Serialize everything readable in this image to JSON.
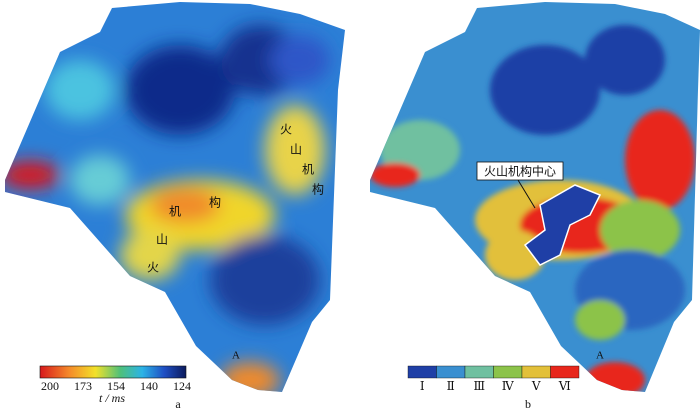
{
  "panels": [
    {
      "label": "a",
      "annotations": [
        [
          "火",
          "山",
          "机",
          "构"
        ],
        [
          "火",
          "山",
          "机",
          "构"
        ]
      ],
      "marker": "A",
      "colorbar": {
        "ticks": [
          200,
          173,
          154,
          140,
          124
        ],
        "unit": "t / ms"
      }
    },
    {
      "label": "b",
      "callout": "火山机构中心",
      "marker": "A",
      "legend": [
        "Ⅰ",
        "Ⅱ",
        "Ⅲ",
        "Ⅳ",
        "Ⅴ",
        "Ⅵ"
      ]
    }
  ]
}
